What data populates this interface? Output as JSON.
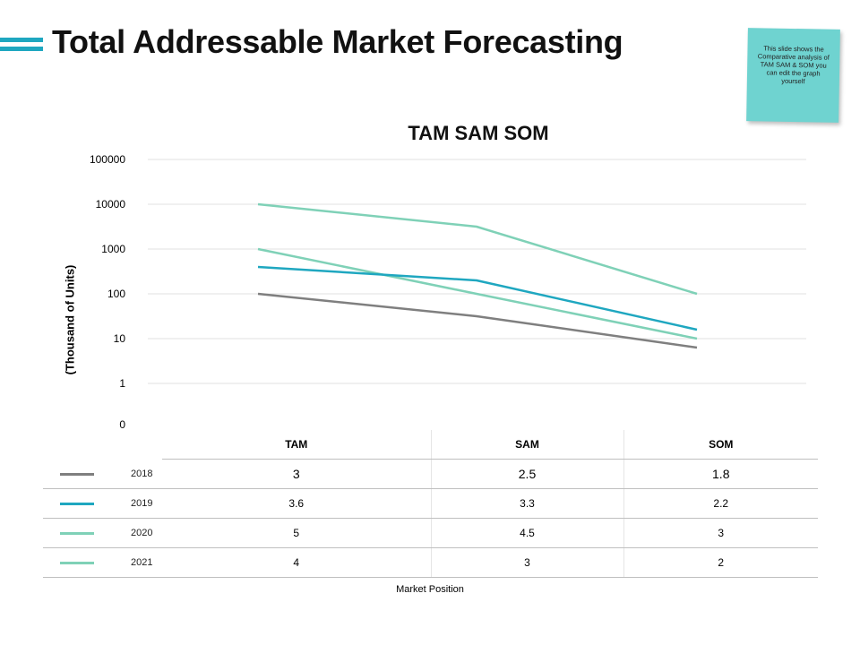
{
  "slide": {
    "title": "Total Addressable Market Forecasting",
    "note": "This slide shows the Comparative analysis of TAM SAM & SOM you can edit the graph yourself",
    "accent_color": "#1fa7c0",
    "note_color": "#6fd3d0"
  },
  "chart_data": {
    "type": "line",
    "title": "TAM SAM SOM",
    "ylabel": "(Thousand of Units)",
    "xlabel": "Market Position",
    "y_scale": "log",
    "y_ticks": [
      "0",
      "1",
      "10",
      "100",
      "1000",
      "10000",
      "100000"
    ],
    "categories": [
      "TAM",
      "SAM",
      "SOM"
    ],
    "series": [
      {
        "name": "2018",
        "values": [
          3,
          2.5,
          1.8
        ],
        "display": [
          "3",
          "2.5",
          "1.8"
        ],
        "color": "#7f7f7f"
      },
      {
        "name": "2019",
        "values": [
          3.6,
          3.3,
          2.2
        ],
        "display": [
          "3.6",
          "3.3",
          "2.2"
        ],
        "color": "#1fa7c0"
      },
      {
        "name": "2020",
        "values": [
          5,
          4.5,
          3
        ],
        "display": [
          "5",
          "4.5",
          "3"
        ],
        "color": "#7fd1b7"
      },
      {
        "name": "2021",
        "values": [
          4,
          3,
          2
        ],
        "display": [
          "4",
          "3",
          "2"
        ],
        "color": "#7fd1b7"
      }
    ]
  }
}
